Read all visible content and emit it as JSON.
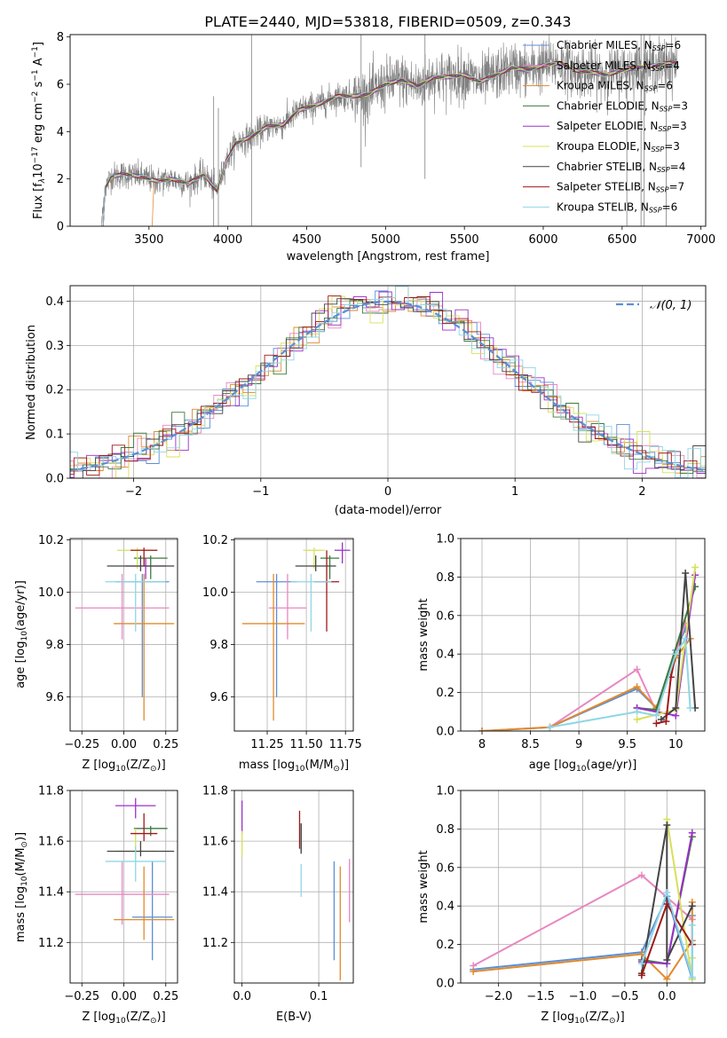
{
  "page_title": "PLATE=2440, MJD=53818, FIBERID=0509, z=0.343",
  "colors": {
    "Chabrier MILES": "#5b8fd6",
    "Salpeter MILES": "#e887c1",
    "Kroupa MILES": "#e08a2e",
    "Chabrier ELODIE": "#3d7a3d",
    "Salpeter ELODIE": "#9b30c9",
    "Kroupa ELODIE": "#d8e05a",
    "Chabrier STELIB": "#444444",
    "Salpeter STELIB": "#a01818",
    "Kroupa STELIB": "#8fd6e6",
    "data": "#808080",
    "normal": "#5b8fd6"
  },
  "chart_data": [
    {
      "id": "spectrum",
      "type": "line",
      "title": "PLATE=2440, MJD=53818, FIBERID=0509, z=0.343",
      "xlabel": "wavelength [Angstrom, rest frame]",
      "ylabel_parts": [
        "Flux [f",
        "λ",
        "10",
        "−17",
        " erg cm",
        "−2",
        " s",
        "−1",
        " A",
        "−1",
        "]"
      ],
      "xlim": [
        3000,
        7030
      ],
      "ylim": [
        0,
        8.1
      ],
      "xticks": [
        3500,
        4000,
        4500,
        5000,
        5500,
        6000,
        6500,
        7000
      ],
      "yticks": [
        0,
        2,
        4,
        6,
        8
      ],
      "grid": false,
      "legend_position": "top-right",
      "legend": [
        {
          "label": "Chabrier MILES, N",
          "sub": "SSP",
          "value": "=6"
        },
        {
          "label": "Salpeter MILES, N",
          "sub": "SSP",
          "value": "=4"
        },
        {
          "label": "Kroupa MILES, N",
          "sub": "SSP",
          "value": "=6"
        },
        {
          "label": "Chabrier ELODIE, N",
          "sub": "SSP",
          "value": "=3"
        },
        {
          "label": "Salpeter ELODIE, N",
          "sub": "SSP",
          "value": "=3"
        },
        {
          "label": "Kroupa ELODIE, N",
          "sub": "SSP",
          "value": "=3"
        },
        {
          "label": "Chabrier STELIB, N",
          "sub": "SSP",
          "value": "=4"
        },
        {
          "label": "Salpeter STELIB, N",
          "sub": "SSP",
          "value": "=7"
        },
        {
          "label": "Kroupa STELIB, N",
          "sub": "SSP",
          "value": "=6"
        }
      ],
      "continuum": [
        [
          3200,
          0
        ],
        [
          3220,
          1.6
        ],
        [
          3260,
          2.1
        ],
        [
          3350,
          2.2
        ],
        [
          3450,
          2.1
        ],
        [
          3550,
          1.9
        ],
        [
          3650,
          2.0
        ],
        [
          3750,
          1.8
        ],
        [
          3850,
          2.2
        ],
        [
          3930,
          1.5
        ],
        [
          3980,
          2.6
        ],
        [
          4050,
          3.5
        ],
        [
          4150,
          3.8
        ],
        [
          4250,
          4.2
        ],
        [
          4350,
          4.3
        ],
        [
          4450,
          4.9
        ],
        [
          4550,
          5.1
        ],
        [
          4700,
          5.5
        ],
        [
          4800,
          5.5
        ],
        [
          4900,
          5.6
        ],
        [
          5000,
          6.0
        ],
        [
          5100,
          6.2
        ],
        [
          5200,
          5.9
        ],
        [
          5300,
          6.3
        ],
        [
          5400,
          6.3
        ],
        [
          5500,
          6.4
        ],
        [
          5600,
          6.1
        ],
        [
          5700,
          6.4
        ],
        [
          5800,
          6.7
        ],
        [
          5900,
          6.6
        ],
        [
          6000,
          6.8
        ],
        [
          6100,
          6.9
        ],
        [
          6200,
          6.6
        ],
        [
          6300,
          6.5
        ],
        [
          6400,
          6.4
        ],
        [
          6500,
          6.6
        ],
        [
          6600,
          6.7
        ],
        [
          6700,
          6.8
        ],
        [
          6800,
          6.9
        ],
        [
          6850,
          6.9
        ]
      ],
      "model_start": [
        3210,
        3210,
        3520,
        3210,
        3210,
        3210,
        3210,
        3210,
        3210
      ]
    },
    {
      "id": "residuals",
      "type": "bar",
      "xlabel": "(data-model)/error",
      "ylabel": "Normed distribution",
      "xlim": [
        -2.5,
        2.5
      ],
      "ylim": [
        0,
        0.435
      ],
      "xticks": [
        -2,
        -1,
        0,
        1,
        2
      ],
      "yticks": [
        0.0,
        0.1,
        0.2,
        0.3,
        0.4
      ],
      "grid": true,
      "bin_width": 0.1,
      "legend_position": "top-right",
      "legend": [
        {
          "label": "𝒩(0, 1)"
        }
      ]
    },
    {
      "id": "age-vs-Z",
      "type": "scatter",
      "xlabel_parts": [
        "Z [log",
        "10",
        "(Z/Z",
        "⊙",
        ")]"
      ],
      "ylabel_parts": [
        "age  [log",
        "10",
        "(age/yr)]"
      ],
      "xlim": [
        -0.32,
        0.32
      ],
      "ylim": [
        9.47,
        10.205
      ],
      "xticks": [
        -0.25,
        0.0,
        0.25
      ],
      "xtick_labels": [
        "−0.25",
        "0.00",
        "0.25"
      ],
      "yticks": [
        9.6,
        9.8,
        10.0,
        10.2
      ],
      "grid": true,
      "points": [
        {
          "series": "Chabrier MILES",
          "x": 0.11,
          "y": 10.04,
          "xerr": 0.16,
          "yerr": [
            0.44,
            0.03
          ]
        },
        {
          "series": "Salpeter MILES",
          "x": -0.01,
          "y": 9.94,
          "xerr": 0.28,
          "yerr": [
            0.12,
            0.13
          ]
        },
        {
          "series": "Kroupa MILES",
          "x": 0.12,
          "y": 9.88,
          "xerr": 0.18,
          "yerr": [
            0.37,
            0.19
          ]
        },
        {
          "series": "Chabrier ELODIE",
          "x": 0.16,
          "y": 10.13,
          "xerr": 0.1,
          "yerr": [
            0.08,
            0.01
          ]
        },
        {
          "series": "Salpeter ELODIE",
          "x": 0.13,
          "y": 10.1,
          "xerr": 0.12,
          "yerr": [
            0.05,
            0.03
          ]
        },
        {
          "series": "Kroupa ELODIE",
          "x": 0.08,
          "y": 10.16,
          "xerr": 0.12,
          "yerr": [
            0.07,
            0.01
          ]
        },
        {
          "series": "Chabrier STELIB",
          "x": 0.1,
          "y": 10.1,
          "xerr": 0.2,
          "yerr": [
            0.02,
            0.04
          ]
        },
        {
          "series": "Salpeter STELIB",
          "x": 0.12,
          "y": 10.16,
          "xerr": 0.08,
          "yerr": [
            0.06,
            0.01
          ]
        },
        {
          "series": "Kroupa STELIB",
          "x": 0.07,
          "y": 10.04,
          "xerr": 0.18,
          "yerr": [
            0.19,
            0.03
          ]
        }
      ]
    },
    {
      "id": "age-vs-mass",
      "type": "scatter",
      "xlabel_parts": [
        "mass [log",
        "10",
        "(M/M",
        "⊙",
        ")]"
      ],
      "xlim": [
        11.04,
        11.8
      ],
      "ylim": [
        9.47,
        10.205
      ],
      "xticks": [
        11.25,
        11.5,
        11.75
      ],
      "xtick_labels": [
        "11.25",
        "11.50",
        "11.75"
      ],
      "yticks": [
        9.6,
        9.8,
        10.0,
        10.2
      ],
      "grid": true,
      "points": [
        {
          "series": "Chabrier MILES",
          "x": 11.31,
          "y": 10.04,
          "xerr": 0.13,
          "yerr": [
            0.44,
            0.03
          ]
        },
        {
          "series": "Salpeter MILES",
          "x": 11.38,
          "y": 9.94,
          "xerr": 0.12,
          "yerr": [
            0.12,
            0.13
          ]
        },
        {
          "series": "Kroupa MILES",
          "x": 11.29,
          "y": 9.88,
          "xerr": 0.2,
          "yerr": [
            0.37,
            0.19
          ]
        },
        {
          "series": "Chabrier ELODIE",
          "x": 11.65,
          "y": 10.13,
          "xerr": 0.06,
          "yerr": [
            0.08,
            0.01
          ]
        },
        {
          "series": "Salpeter ELODIE",
          "x": 11.73,
          "y": 10.16,
          "xerr": 0.05,
          "yerr": [
            0.05,
            0.03
          ]
        },
        {
          "series": "Kroupa ELODIE",
          "x": 11.55,
          "y": 10.16,
          "xerr": 0.07,
          "yerr": [
            0.07,
            0.01
          ]
        },
        {
          "series": "Chabrier STELIB",
          "x": 11.56,
          "y": 10.1,
          "xerr": 0.13,
          "yerr": [
            0.02,
            0.04
          ]
        },
        {
          "series": "Salpeter STELIB",
          "x": 11.63,
          "y": 10.04,
          "xerr": 0.08,
          "yerr": [
            0.19,
            0.12
          ]
        },
        {
          "series": "Kroupa STELIB",
          "x": 11.53,
          "y": 10.04,
          "xerr": 0.13,
          "yerr": [
            0.19,
            0.03
          ]
        }
      ]
    },
    {
      "id": "mass-weight-vs-age",
      "type": "line",
      "xlabel_parts": [
        "age  [log",
        "10",
        "(age/yr)]"
      ],
      "ylabel": "mass weight",
      "xlim": [
        7.78,
        10.3
      ],
      "ylim": [
        0,
        1.0
      ],
      "xticks": [
        8.0,
        8.5,
        9.0,
        9.5,
        10.0
      ],
      "yticks": [
        0.0,
        0.2,
        0.4,
        0.6,
        0.8,
        1.0
      ],
      "grid": true,
      "series": [
        {
          "name": "Chabrier MILES",
          "x": [
            8.0,
            8.7,
            9.6,
            9.8,
            10.0,
            10.1
          ],
          "y": [
            0.0,
            0.02,
            0.22,
            0.12,
            0.42,
            0.53
          ]
        },
        {
          "name": "Salpeter MILES",
          "x": [
            8.7,
            9.6,
            9.8,
            10.1
          ],
          "y": [
            0.02,
            0.32,
            0.1,
            0.56
          ]
        },
        {
          "name": "Kroupa MILES",
          "x": [
            8.0,
            8.7,
            9.6,
            9.8,
            10.0,
            10.15
          ],
          "y": [
            0.0,
            0.02,
            0.23,
            0.12,
            0.38,
            0.48
          ]
        },
        {
          "name": "Chabrier ELODIE",
          "x": [
            9.6,
            9.8,
            10.2
          ],
          "y": [
            0.12,
            0.11,
            0.75
          ]
        },
        {
          "name": "Salpeter ELODIE",
          "x": [
            9.6,
            10.0,
            10.2
          ],
          "y": [
            0.12,
            0.08,
            0.81
          ]
        },
        {
          "name": "Kroupa ELODIE",
          "x": [
            9.6,
            10.0,
            10.2
          ],
          "y": [
            0.06,
            0.11,
            0.85
          ]
        },
        {
          "name": "Chabrier STELIB",
          "x": [
            9.85,
            10.0,
            10.1,
            10.2
          ],
          "y": [
            0.06,
            0.12,
            0.82,
            0.12
          ]
        },
        {
          "name": "Salpeter STELIB",
          "x": [
            9.8,
            9.9,
            9.95,
            10.0
          ],
          "y": [
            0.04,
            0.05,
            0.28,
            0.4
          ]
        },
        {
          "name": "Kroupa STELIB",
          "x": [
            8.7,
            9.6,
            9.8,
            10.0,
            10.1,
            10.15
          ],
          "y": [
            0.02,
            0.1,
            0.08,
            0.4,
            0.48,
            0.12
          ]
        }
      ]
    },
    {
      "id": "mass-vs-Z",
      "type": "scatter",
      "xlabel_parts": [
        "Z [log",
        "10",
        "(Z/Z",
        "⊙",
        ")]"
      ],
      "ylabel_parts": [
        "mass [log",
        "10",
        "(M/M",
        "⊙",
        ")]"
      ],
      "xlim": [
        -0.32,
        0.32
      ],
      "ylim": [
        11.04,
        11.8
      ],
      "xticks": [
        -0.25,
        0.0,
        0.25
      ],
      "xtick_labels": [
        "−0.25",
        "0.00",
        "0.25"
      ],
      "yticks": [
        11.2,
        11.4,
        11.6,
        11.8
      ],
      "grid": true,
      "points": [
        {
          "series": "Chabrier MILES",
          "x": 0.17,
          "y": 11.3,
          "xerr": 0.12,
          "yerr": [
            0.17,
            0.22
          ]
        },
        {
          "series": "Salpeter MILES",
          "x": -0.01,
          "y": 11.39,
          "xerr": 0.28,
          "yerr": [
            0.12,
            0.13
          ]
        },
        {
          "series": "Kroupa MILES",
          "x": 0.12,
          "y": 11.29,
          "xerr": 0.18,
          "yerr": [
            0.08,
            0.21
          ]
        },
        {
          "series": "Chabrier ELODIE",
          "x": 0.16,
          "y": 11.65,
          "xerr": 0.1,
          "yerr": [
            0.03,
            0.01
          ]
        },
        {
          "series": "Salpeter ELODIE",
          "x": 0.07,
          "y": 11.74,
          "xerr": 0.12,
          "yerr": [
            0.05,
            0.03
          ]
        },
        {
          "series": "Kroupa ELODIE",
          "x": 0.07,
          "y": 11.56,
          "xerr": 0.12,
          "yerr": [
            0.03,
            0.09
          ]
        },
        {
          "series": "Chabrier STELIB",
          "x": 0.1,
          "y": 11.56,
          "xerr": 0.2,
          "yerr": [
            0.02,
            0.04
          ]
        },
        {
          "series": "Salpeter STELIB",
          "x": 0.12,
          "y": 11.63,
          "xerr": 0.08,
          "yerr": [
            0.03,
            0.08
          ]
        },
        {
          "series": "Kroupa STELIB",
          "x": 0.07,
          "y": 11.52,
          "xerr": 0.18,
          "yerr": [
            0.08,
            0.06
          ]
        }
      ]
    },
    {
      "id": "mass-vs-ebv",
      "type": "scatter",
      "xlabel": "E(B-V)",
      "xlim": [
        -0.01,
        0.145
      ],
      "ylim": [
        11.04,
        11.8
      ],
      "xticks": [
        0.0,
        0.1
      ],
      "xtick_labels": [
        "0.0",
        "0.1"
      ],
      "yticks": [
        11.2,
        11.4,
        11.6,
        11.8
      ],
      "grid": true,
      "points": [
        {
          "series": "Chabrier MILES",
          "x": 0.12,
          "y": 11.3,
          "xerr": 0,
          "yerr": [
            0.17,
            0.22
          ]
        },
        {
          "series": "Salpeter MILES",
          "x": 0.14,
          "y": 11.4,
          "xerr": 0,
          "yerr": [
            0.12,
            0.13
          ]
        },
        {
          "series": "Kroupa MILES",
          "x": 0.128,
          "y": 11.29,
          "xerr": 0,
          "yerr": [
            0.24,
            0.21
          ]
        },
        {
          "series": "Chabrier ELODIE",
          "x": 0.077,
          "y": 11.6,
          "xerr": 0,
          "yerr": [
            0.04,
            0.07
          ]
        },
        {
          "series": "Salpeter ELODIE",
          "x": 0.0,
          "y": 11.7,
          "xerr": 0,
          "yerr": [
            0.07,
            0.06
          ]
        },
        {
          "series": "Kroupa ELODIE",
          "x": 0.0,
          "y": 11.6,
          "xerr": 0,
          "yerr": [
            0.06,
            0.04
          ]
        },
        {
          "series": "Chabrier STELIB",
          "x": 0.077,
          "y": 11.6,
          "xerr": 0,
          "yerr": [
            0.05,
            0.07
          ]
        },
        {
          "series": "Salpeter STELIB",
          "x": 0.075,
          "y": 11.63,
          "xerr": 0,
          "yerr": [
            0.06,
            0.09
          ]
        },
        {
          "series": "Kroupa STELIB",
          "x": 0.077,
          "y": 11.45,
          "xerr": 0,
          "yerr": [
            0.07,
            0.06
          ]
        }
      ]
    },
    {
      "id": "mass-weight-vs-Z",
      "type": "line",
      "xlabel_parts": [
        "Z [log",
        "10",
        "(Z/Z",
        "⊙",
        ")]"
      ],
      "ylabel": "mass weight",
      "xlim": [
        -2.45,
        0.45
      ],
      "ylim": [
        0,
        1.0
      ],
      "xticks": [
        -2.0,
        -1.5,
        -1.0,
        -0.5,
        0.0
      ],
      "xtick_labels": [
        "−2.0",
        "−1.5",
        "−1.0",
        "−0.5",
        "0.0"
      ],
      "yticks": [
        0.0,
        0.2,
        0.4,
        0.6,
        0.8,
        1.0
      ],
      "grid": true,
      "series": [
        {
          "name": "Chabrier MILES",
          "x": [
            -2.3,
            -0.3,
            0.0,
            0.3,
            0.3
          ],
          "y": [
            0.07,
            0.16,
            0.45,
            0.02,
            0.35
          ]
        },
        {
          "name": "Salpeter MILES",
          "x": [
            -2.3,
            -0.3,
            0.3
          ],
          "y": [
            0.09,
            0.56,
            0.33
          ]
        },
        {
          "name": "Kroupa MILES",
          "x": [
            -2.3,
            -0.3,
            0.0,
            0.3,
            0.3
          ],
          "y": [
            0.06,
            0.15,
            0.02,
            0.22,
            0.42
          ]
        },
        {
          "name": "Chabrier ELODIE",
          "x": [
            -0.3,
            0.0,
            0.3
          ],
          "y": [
            0.12,
            0.1,
            0.76
          ]
        },
        {
          "name": "Salpeter ELODIE",
          "x": [
            -0.3,
            0.0,
            0.3
          ],
          "y": [
            0.11,
            0.1,
            0.78
          ]
        },
        {
          "name": "Kroupa ELODIE",
          "x": [
            0.0,
            0.3,
            0.3
          ],
          "y": [
            0.85,
            0.02,
            0.13
          ]
        },
        {
          "name": "Chabrier STELIB",
          "x": [
            -0.3,
            0.0,
            0.0,
            0.3
          ],
          "y": [
            0.05,
            0.82,
            0.12,
            0.4
          ]
        },
        {
          "name": "Salpeter STELIB",
          "x": [
            -0.3,
            0.0,
            0.3
          ],
          "y": [
            0.04,
            0.41,
            0.2
          ]
        },
        {
          "name": "Kroupa STELIB",
          "x": [
            -0.3,
            0.0,
            0.3,
            0.3
          ],
          "y": [
            0.1,
            0.47,
            0.03,
            0.3
          ]
        }
      ]
    }
  ]
}
